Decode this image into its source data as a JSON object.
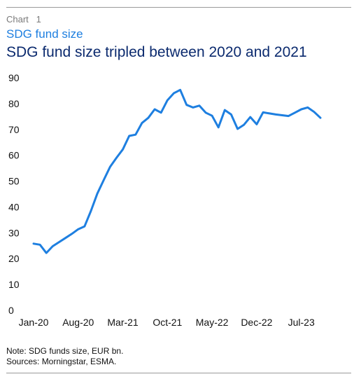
{
  "header": {
    "chart_number": "Chart   1",
    "subtitle": "SDG fund size",
    "title": "SDG fund size tripled between 2020 and 2021"
  },
  "footer": {
    "note": "Note: SDG funds size, EUR bn.",
    "sources": "Sources: Morningstar, ESMA."
  },
  "chart_data": {
    "type": "line",
    "title": "SDG fund size tripled between 2020 and 2021",
    "subtitle": "SDG fund size",
    "xlabel": "",
    "ylabel": "",
    "ylim": [
      0,
      90
    ],
    "yticks": [
      0,
      10,
      20,
      30,
      40,
      50,
      60,
      70,
      80,
      90
    ],
    "xtick_labels": [
      "Jan-20",
      "Aug-20",
      "Mar-21",
      "Oct-21",
      "May-22",
      "Dec-22",
      "Jul-23"
    ],
    "grid": false,
    "legend": "none",
    "line_color": "#1e7fe0",
    "x": [
      "Jan-20",
      "Feb-20",
      "Mar-20",
      "Apr-20",
      "May-20",
      "Jun-20",
      "Jul-20",
      "Aug-20",
      "Sep-20",
      "Oct-20",
      "Nov-20",
      "Dec-20",
      "Jan-21",
      "Feb-21",
      "Mar-21",
      "Apr-21",
      "May-21",
      "Jun-21",
      "Jul-21",
      "Aug-21",
      "Sep-21",
      "Oct-21",
      "Nov-21",
      "Dec-21",
      "Jan-22",
      "Feb-22",
      "Mar-22",
      "Apr-22",
      "May-22",
      "Jun-22",
      "Jul-22",
      "Aug-22",
      "Sep-22",
      "Oct-22",
      "Nov-22",
      "Dec-22",
      "Jan-23",
      "Feb-23",
      "Mar-23",
      "Apr-23",
      "May-23",
      "Jun-23",
      "Jul-23",
      "Aug-23",
      "Sep-23",
      "Oct-23"
    ],
    "series": [
      {
        "values": [
          25.8,
          25.4,
          22.2,
          24.8,
          26.4,
          28.0,
          29.6,
          31.4,
          32.5,
          38.5,
          45.2,
          50.4,
          55.5,
          59.0,
          62.3,
          67.5,
          68.0,
          72.5,
          74.5,
          77.8,
          76.5,
          81.3,
          84.0,
          85.3,
          79.5,
          78.5,
          79.2,
          76.5,
          75.3,
          70.8,
          77.5,
          75.8,
          70.2,
          71.8,
          74.8,
          72.0,
          76.6,
          76.2,
          75.8,
          75.5,
          75.2,
          76.5,
          77.8,
          78.5,
          76.8,
          74.5
        ]
      }
    ]
  }
}
